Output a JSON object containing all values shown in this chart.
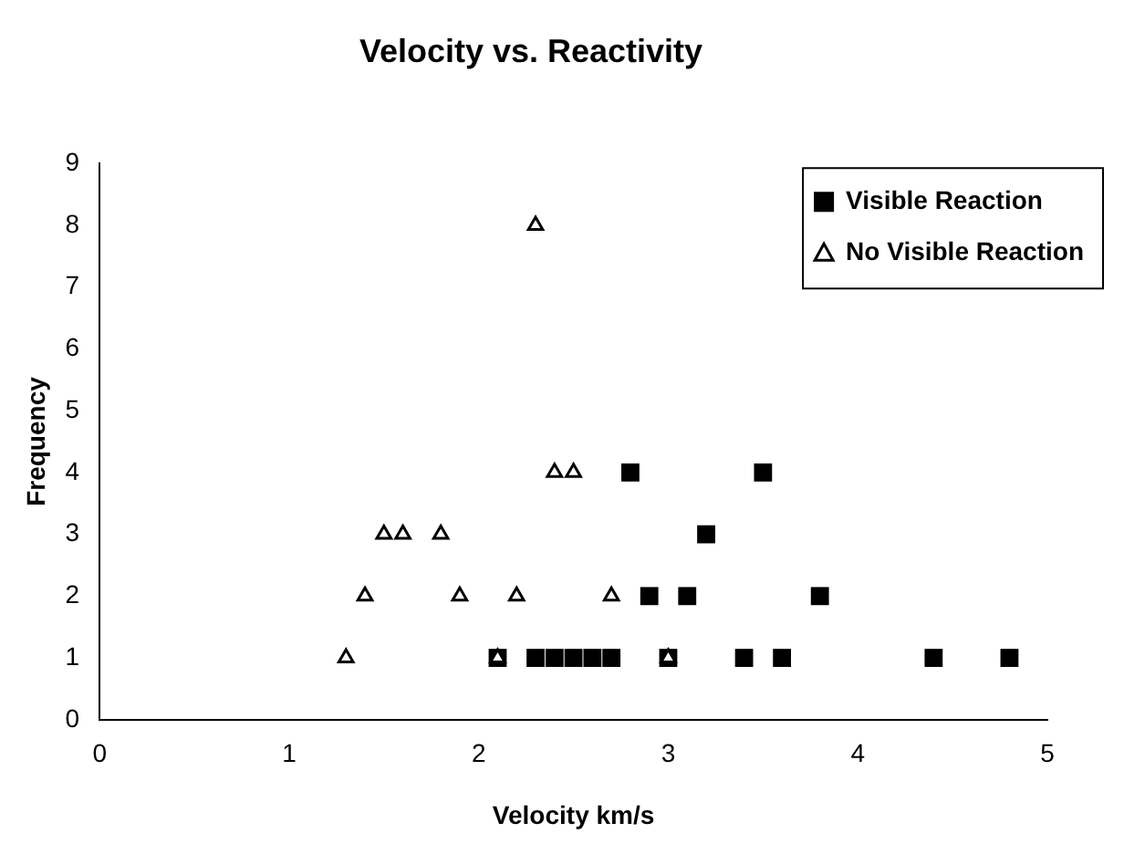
{
  "chart_data": {
    "type": "scatter",
    "title": "Velocity vs. Reactivity",
    "xlabel": "Velocity km/s",
    "ylabel": "Frequency",
    "xlim": [
      0,
      5
    ],
    "xticks": [
      0,
      1,
      2,
      3,
      4,
      5
    ],
    "ylim": [
      0,
      9
    ],
    "yticks": [
      0,
      1,
      2,
      3,
      4,
      5,
      6,
      7,
      8,
      9
    ],
    "grid": false,
    "legend": "top right",
    "series": [
      {
        "name": "Visible Reaction",
        "color": "#000000",
        "marker": "square",
        "x": [
          2.1,
          2.3,
          2.4,
          2.5,
          2.6,
          2.7,
          3.0,
          3.4,
          3.6,
          4.4,
          4.8,
          2.9,
          3.1,
          3.8,
          3.2,
          2.8,
          3.5
        ],
        "values": [
          1,
          1,
          1,
          1,
          1,
          1,
          1,
          1,
          1,
          1,
          1,
          2,
          2,
          2,
          3,
          4,
          4
        ]
      },
      {
        "name": "No Visible Reaction",
        "color": "#000000",
        "marker": "triangle",
        "x": [
          1.3,
          2.1,
          3.0,
          1.4,
          1.9,
          2.2,
          2.7,
          1.5,
          1.6,
          1.8,
          2.4,
          2.5,
          2.3
        ],
        "values": [
          1,
          1,
          1,
          2,
          2,
          2,
          2,
          3,
          3,
          3,
          4,
          4,
          8
        ]
      }
    ]
  }
}
